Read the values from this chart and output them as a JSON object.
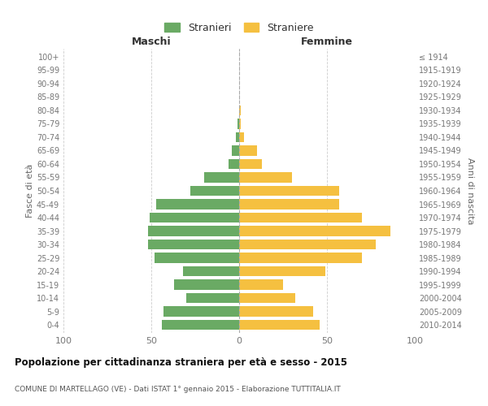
{
  "age_groups": [
    "0-4",
    "5-9",
    "10-14",
    "15-19",
    "20-24",
    "25-29",
    "30-34",
    "35-39",
    "40-44",
    "45-49",
    "50-54",
    "55-59",
    "60-64",
    "65-69",
    "70-74",
    "75-79",
    "80-84",
    "85-89",
    "90-94",
    "95-99",
    "100+"
  ],
  "birth_years": [
    "2010-2014",
    "2005-2009",
    "2000-2004",
    "1995-1999",
    "1990-1994",
    "1985-1989",
    "1980-1984",
    "1975-1979",
    "1970-1974",
    "1965-1969",
    "1960-1964",
    "1955-1959",
    "1950-1954",
    "1945-1949",
    "1940-1944",
    "1935-1939",
    "1930-1934",
    "1925-1929",
    "1920-1924",
    "1915-1919",
    "≤ 1914"
  ],
  "males": [
    44,
    43,
    30,
    37,
    32,
    48,
    52,
    52,
    51,
    47,
    28,
    20,
    6,
    4,
    2,
    1,
    0,
    0,
    0,
    0,
    0
  ],
  "females": [
    46,
    42,
    32,
    25,
    49,
    70,
    78,
    86,
    70,
    57,
    57,
    30,
    13,
    10,
    3,
    1,
    1,
    0,
    0,
    0,
    0
  ],
  "male_color": "#6aaa64",
  "female_color": "#f5c040",
  "title": "Popolazione per cittadinanza straniera per età e sesso - 2015",
  "subtitle": "COMUNE DI MARTELLAGO (VE) - Dati ISTAT 1° gennaio 2015 - Elaborazione TUTTITALIA.IT",
  "xlabel_left": "Maschi",
  "xlabel_right": "Femmine",
  "ylabel_left": "Fasce di età",
  "ylabel_right": "Anni di nascita",
  "legend_male": "Stranieri",
  "legend_female": "Straniere",
  "xlim": 100,
  "bg_color": "#ffffff",
  "grid_color": "#cccccc"
}
